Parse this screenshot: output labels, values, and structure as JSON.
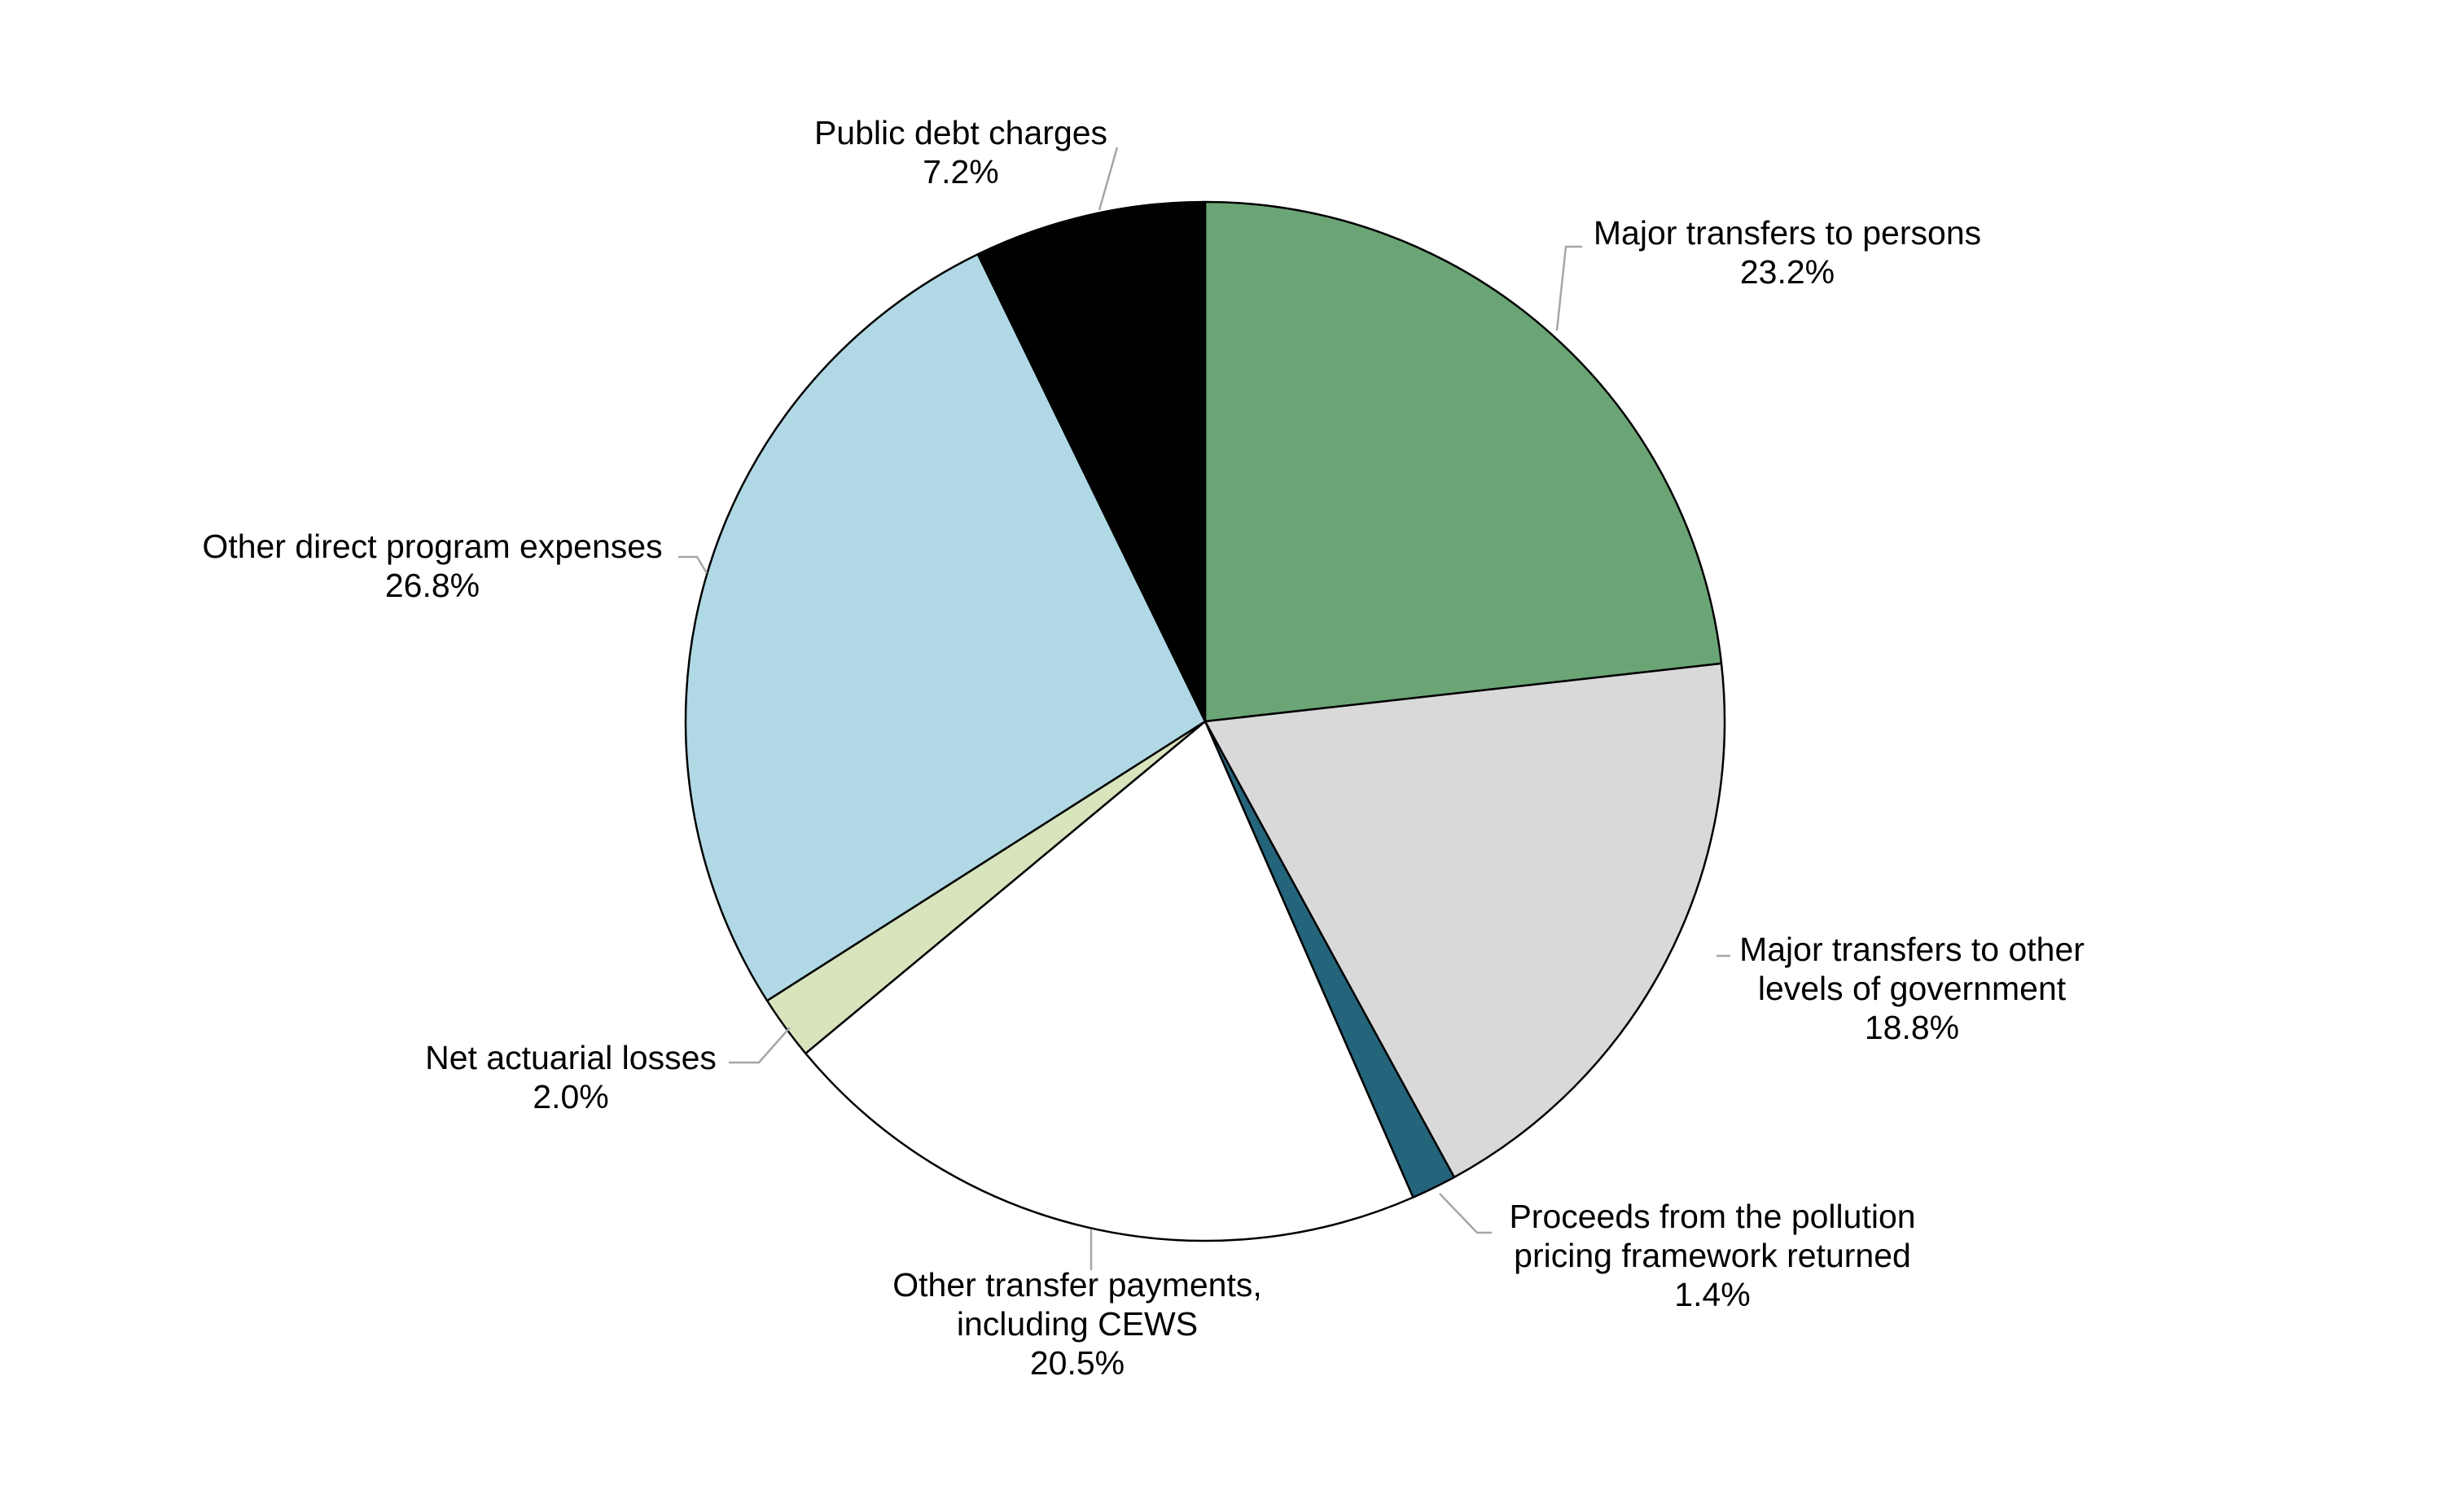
{
  "chart_data": {
    "type": "pie",
    "start_angle_deg": 0,
    "direction": "clockwise",
    "slices": [
      {
        "label_lines": [
          "Major transfers to persons"
        ],
        "value_label": "23.2%",
        "value": 23.2,
        "color": "#6ba576"
      },
      {
        "label_lines": [
          "Major transfers to other",
          "levels of government"
        ],
        "value_label": "18.8%",
        "value": 18.8,
        "color": "#d9d9d9"
      },
      {
        "label_lines": [
          "Proceeds from the pollution",
          "pricing framework returned"
        ],
        "value_label": "1.4%",
        "value": 1.4,
        "color": "#24657b"
      },
      {
        "label_lines": [
          "Other transfer payments,",
          "including CEWS"
        ],
        "value_label": "20.5%",
        "value": 20.5,
        "color": "#ffffff"
      },
      {
        "label_lines": [
          "Net actuarial losses"
        ],
        "value_label": "2.0%",
        "value": 2.0,
        "color": "#d8e4bc"
      },
      {
        "label_lines": [
          "Other direct program expenses"
        ],
        "value_label": "26.8%",
        "value": 26.8,
        "color": "#b0d9e5"
      },
      {
        "label_lines": [
          "Public debt charges"
        ],
        "value_label": "7.2%",
        "value": 7.2,
        "color": "#000000"
      }
    ]
  }
}
